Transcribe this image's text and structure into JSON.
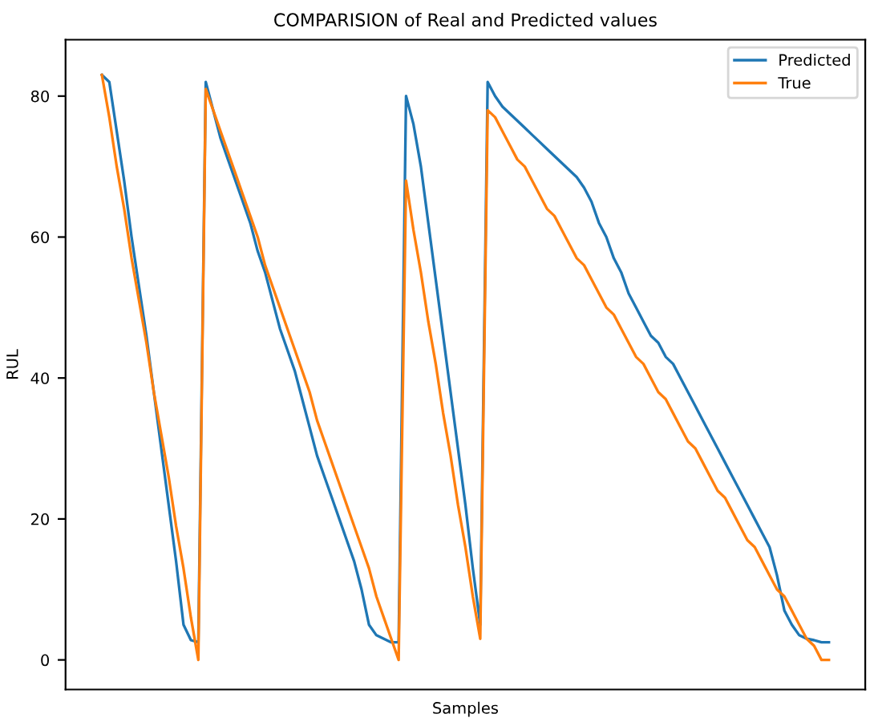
{
  "chart_data": {
    "type": "line",
    "title": "COMPARISION of Real and Predicted values",
    "xlabel": "Samples",
    "ylabel": "RUL",
    "categories": [
      null,
      null,
      null,
      null,
      null,
      null,
      null,
      null,
      null,
      null,
      null,
      null,
      null,
      null,
      null,
      null,
      null,
      null,
      null,
      null,
      null,
      null,
      null,
      null,
      null,
      null,
      null,
      null,
      null,
      null,
      null,
      null,
      null,
      null,
      null,
      null,
      null,
      null,
      null,
      null,
      null,
      null,
      null,
      null,
      null,
      null,
      null,
      null,
      null,
      null,
      null,
      null,
      null,
      null,
      null,
      null,
      null,
      null,
      null,
      null,
      null,
      null,
      null,
      null,
      null,
      null,
      null,
      null,
      null,
      null,
      null,
      null,
      null,
      null,
      null,
      null,
      null,
      null,
      null,
      null,
      null,
      null,
      null,
      null,
      null,
      null,
      null,
      null,
      null,
      null,
      null,
      null,
      null,
      null,
      null,
      null,
      null,
      null,
      null
    ],
    "series": [
      {
        "name": "Predicted",
        "color": "#1f77b4",
        "values": [
          83,
          82,
          75,
          68,
          60,
          53,
          46,
          38,
          30,
          22,
          14,
          5,
          2.8,
          2.5,
          82,
          78,
          74,
          71,
          68,
          65,
          62,
          58,
          55,
          51,
          47,
          44,
          41,
          37,
          33,
          29,
          26,
          23,
          20,
          17,
          14,
          10,
          5,
          3.5,
          3,
          2.5,
          2.5,
          80,
          76,
          70,
          62,
          54,
          46,
          38,
          30,
          22,
          13,
          5,
          82,
          80,
          78.5,
          77.5,
          76.5,
          75.5,
          74.5,
          73.5,
          72.5,
          71.5,
          70.5,
          69.5,
          68.5,
          67,
          65,
          62,
          60,
          57,
          55,
          52,
          50,
          48,
          46,
          45,
          43,
          42,
          40,
          38,
          36,
          34,
          32,
          30,
          28,
          26,
          24,
          22,
          20,
          18,
          16,
          12,
          7,
          5,
          3.5,
          3,
          2.8,
          2.5,
          2.5
        ]
      },
      {
        "name": "True",
        "color": "#ff7f0e",
        "values": [
          83,
          77,
          70,
          64,
          57,
          51,
          45,
          38,
          32,
          26,
          19,
          13,
          6,
          0,
          81,
          78,
          75,
          72,
          69,
          66,
          63,
          60,
          56,
          53,
          50,
          47,
          44,
          41,
          38,
          34,
          31,
          28,
          25,
          22,
          19,
          16,
          13,
          9,
          6,
          3,
          0,
          68,
          61,
          55,
          48,
          42,
          35,
          29,
          22,
          16,
          9,
          3,
          78,
          77,
          75,
          73,
          71,
          70,
          68,
          66,
          64,
          63,
          61,
          59,
          57,
          56,
          54,
          52,
          50,
          49,
          47,
          45,
          43,
          42,
          40,
          38,
          37,
          35,
          33,
          31,
          30,
          28,
          26,
          24,
          23,
          21,
          19,
          17,
          16,
          14,
          12,
          10,
          9,
          7,
          5,
          3,
          2,
          0,
          0
        ]
      }
    ],
    "ylim": [
      -4.2,
      88
    ],
    "yticks": [
      0,
      20,
      40,
      60,
      80
    ],
    "tick_labels": "y",
    "legend": "top right",
    "grid": false
  }
}
